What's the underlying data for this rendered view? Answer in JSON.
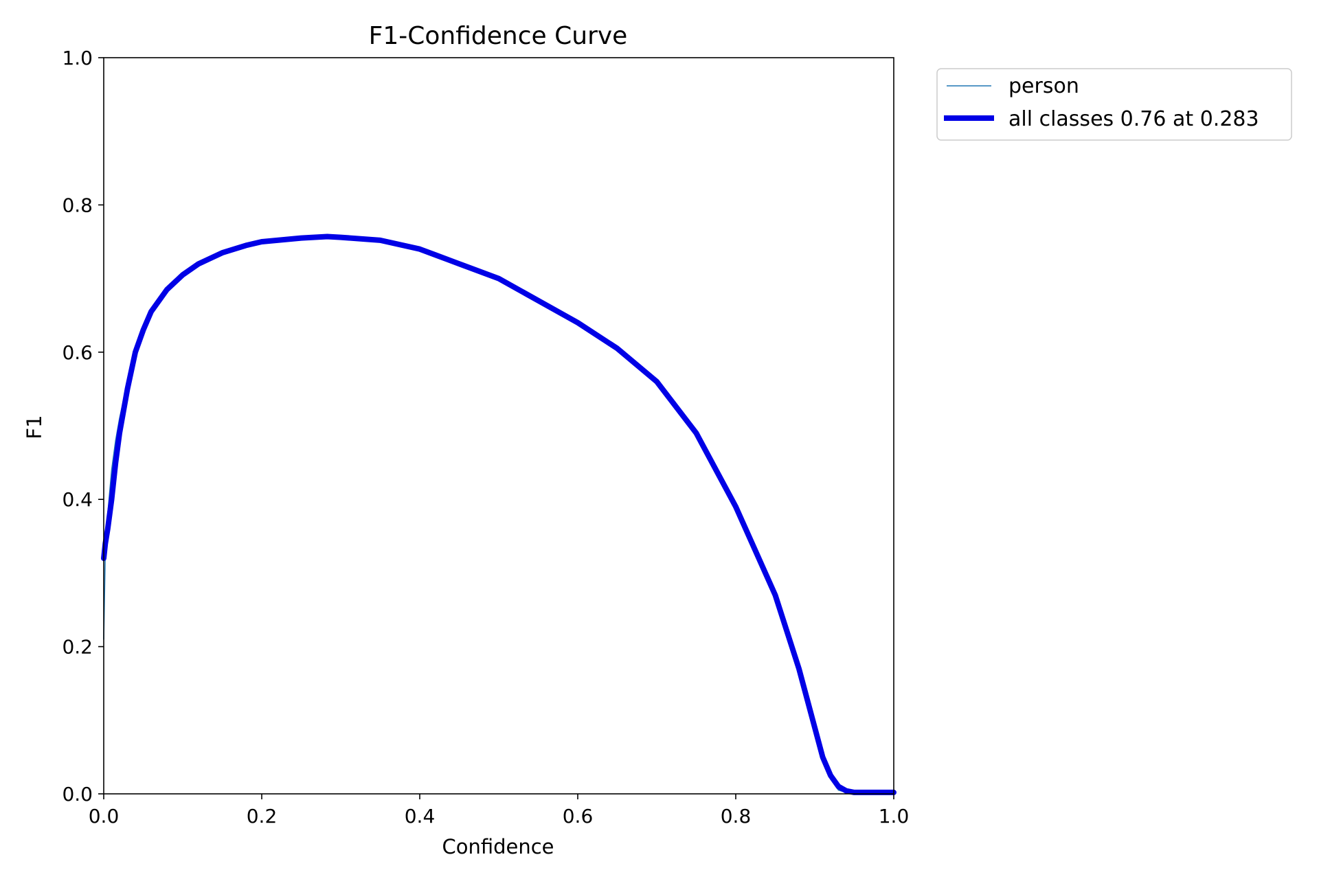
{
  "chart_data": {
    "type": "line",
    "title": "F1-Confidence Curve",
    "xlabel": "Confidence",
    "ylabel": "F1",
    "xlim": [
      0.0,
      1.0
    ],
    "ylim": [
      0.0,
      1.0
    ],
    "xticks": [
      "0.0",
      "0.2",
      "0.4",
      "0.6",
      "0.8",
      "1.0"
    ],
    "yticks": [
      "0.0",
      "0.2",
      "0.4",
      "0.6",
      "0.8",
      "1.0"
    ],
    "grid": false,
    "legend_position": "outside-top-right",
    "series": [
      {
        "name": "person",
        "color": "#1f77b4",
        "line_width": "thin",
        "x": [
          0.0,
          0.002,
          0.005,
          0.01,
          0.015,
          0.02,
          0.03,
          0.04,
          0.05,
          0.06,
          0.08,
          0.1,
          0.12,
          0.15,
          0.18,
          0.2,
          0.25,
          0.283,
          0.3,
          0.35,
          0.4,
          0.45,
          0.5,
          0.55,
          0.6,
          0.65,
          0.7,
          0.75,
          0.8,
          0.85,
          0.88,
          0.9,
          0.91,
          0.92,
          0.93,
          0.94,
          0.95,
          0.96,
          0.98,
          1.0
        ],
        "y": [
          0.21,
          0.33,
          0.38,
          0.44,
          0.48,
          0.51,
          0.56,
          0.6,
          0.63,
          0.655,
          0.685,
          0.705,
          0.72,
          0.735,
          0.745,
          0.75,
          0.755,
          0.757,
          0.756,
          0.752,
          0.74,
          0.72,
          0.7,
          0.67,
          0.64,
          0.605,
          0.56,
          0.49,
          0.39,
          0.27,
          0.17,
          0.09,
          0.05,
          0.02,
          0.005,
          0.002,
          0.001,
          0.001,
          0.001,
          0.001
        ]
      },
      {
        "name": "all classes 0.76 at 0.283",
        "color": "#0000e6",
        "line_width": "thick",
        "x": [
          0.0,
          0.002,
          0.005,
          0.01,
          0.015,
          0.02,
          0.03,
          0.04,
          0.05,
          0.06,
          0.08,
          0.1,
          0.12,
          0.15,
          0.18,
          0.2,
          0.25,
          0.283,
          0.3,
          0.35,
          0.4,
          0.45,
          0.5,
          0.55,
          0.6,
          0.65,
          0.7,
          0.75,
          0.8,
          0.85,
          0.88,
          0.9,
          0.91,
          0.92,
          0.93,
          0.94,
          0.95,
          0.96,
          0.98,
          1.0
        ],
        "y": [
          0.32,
          0.34,
          0.36,
          0.4,
          0.45,
          0.49,
          0.55,
          0.6,
          0.63,
          0.655,
          0.685,
          0.705,
          0.72,
          0.735,
          0.745,
          0.75,
          0.755,
          0.757,
          0.756,
          0.752,
          0.74,
          0.72,
          0.7,
          0.67,
          0.64,
          0.605,
          0.56,
          0.49,
          0.39,
          0.27,
          0.17,
          0.09,
          0.05,
          0.025,
          0.01,
          0.004,
          0.002,
          0.002,
          0.002,
          0.002
        ]
      }
    ]
  }
}
